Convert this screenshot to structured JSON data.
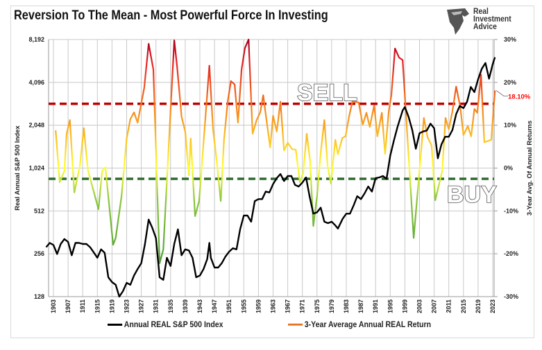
{
  "title": "Reversion To The Mean - Most Powerful Force In Investing",
  "logo": {
    "line1": "Real",
    "line2": "Investment",
    "line3": "Advice",
    "icon": "eagle-head-icon"
  },
  "chart_data": {
    "type": "line",
    "title": "Reversion To The Mean - Most Powerful Force In Investing",
    "xlim": [
      1901.7,
      2023.6
    ],
    "x_tick_labels": [
      "1903",
      "1907",
      "1911",
      "1915",
      "1919",
      "1923",
      "1927",
      "1931",
      "1935",
      "1939",
      "1943",
      "1947",
      "1951",
      "1955",
      "1959",
      "1963",
      "1967",
      "1971",
      "1975",
      "1979",
      "1983",
      "1987",
      "1991",
      "1995",
      "1999",
      "2003",
      "2007",
      "2011",
      "2015",
      "2019",
      "2023"
    ],
    "y_left": {
      "label": "Real Annual S&P 500 Index",
      "scale": "log2",
      "ylim": [
        128,
        8192
      ],
      "tick_labels": [
        "128",
        "256",
        "512",
        "1,024",
        "2,048",
        "4,096",
        "8,192"
      ],
      "ticks": [
        128,
        256,
        512,
        1024,
        2048,
        4096,
        8192
      ]
    },
    "y_right": {
      "label": "3-Year Avg. Of Annual Returns",
      "ylim": [
        -30,
        30
      ],
      "tick_labels": [
        "-30%",
        "-20%",
        "-10%",
        "0%",
        "10%",
        "20%",
        "30%"
      ],
      "ticks": [
        -30,
        -20,
        -10,
        0,
        10,
        20,
        30
      ]
    },
    "grid": true,
    "legend_position": "bottom",
    "series": [
      {
        "name": "Annual REAL S&P 500 Index",
        "axis": "left",
        "color": "#000000",
        "points": [
          [
            1901,
            285
          ],
          [
            1902,
            305
          ],
          [
            1903,
            295
          ],
          [
            1904,
            255
          ],
          [
            1905,
            300
          ],
          [
            1906,
            325
          ],
          [
            1907,
            310
          ],
          [
            1908,
            250
          ],
          [
            1909,
            305
          ],
          [
            1910,
            305
          ],
          [
            1911,
            300
          ],
          [
            1912,
            300
          ],
          [
            1913,
            285
          ],
          [
            1914,
            262
          ],
          [
            1915,
            240
          ],
          [
            1916,
            275
          ],
          [
            1917,
            260
          ],
          [
            1918,
            175
          ],
          [
            1919,
            162
          ],
          [
            1920,
            155
          ],
          [
            1921,
            128
          ],
          [
            1922,
            140
          ],
          [
            1923,
            160
          ],
          [
            1924,
            155
          ],
          [
            1925,
            180
          ],
          [
            1926,
            200
          ],
          [
            1927,
            220
          ],
          [
            1928,
            300
          ],
          [
            1929,
            445
          ],
          [
            1930,
            390
          ],
          [
            1931,
            330
          ],
          [
            1932,
            175
          ],
          [
            1933,
            168
          ],
          [
            1934,
            240
          ],
          [
            1935,
            210
          ],
          [
            1936,
            300
          ],
          [
            1937,
            380
          ],
          [
            1938,
            250
          ],
          [
            1939,
            275
          ],
          [
            1940,
            270
          ],
          [
            1941,
            240
          ],
          [
            1942,
            175
          ],
          [
            1943,
            180
          ],
          [
            1944,
            200
          ],
          [
            1945,
            235
          ],
          [
            1945.6,
            305
          ],
          [
            1946,
            240
          ],
          [
            1947,
            205
          ],
          [
            1948,
            205
          ],
          [
            1949,
            220
          ],
          [
            1950,
            245
          ],
          [
            1951,
            265
          ],
          [
            1952,
            280
          ],
          [
            1953,
            275
          ],
          [
            1954,
            380
          ],
          [
            1955,
            475
          ],
          [
            1956,
            475
          ],
          [
            1957,
            430
          ],
          [
            1958,
            600
          ],
          [
            1959,
            620
          ],
          [
            1960,
            620
          ],
          [
            1961,
            700
          ],
          [
            1962,
            690
          ],
          [
            1963,
            790
          ],
          [
            1964,
            870
          ],
          [
            1965,
            930
          ],
          [
            1966,
            830
          ],
          [
            1967,
            900
          ],
          [
            1968,
            900
          ],
          [
            1969,
            780
          ],
          [
            1970,
            760
          ],
          [
            1971,
            810
          ],
          [
            1972,
            880
          ],
          [
            1973,
            640
          ],
          [
            1974,
            490
          ],
          [
            1975,
            500
          ],
          [
            1976,
            540
          ],
          [
            1977,
            430
          ],
          [
            1978,
            420
          ],
          [
            1979,
            430
          ],
          [
            1980,
            405
          ],
          [
            1980.7,
            385
          ],
          [
            1982,
            450
          ],
          [
            1983,
            490
          ],
          [
            1984,
            490
          ],
          [
            1985,
            560
          ],
          [
            1986,
            650
          ],
          [
            1987,
            620
          ],
          [
            1988,
            680
          ],
          [
            1989,
            760
          ],
          [
            1990,
            700
          ],
          [
            1991,
            870
          ],
          [
            1992,
            880
          ],
          [
            1993,
            900
          ],
          [
            1994,
            860
          ],
          [
            1995,
            1250
          ],
          [
            1996,
            1600
          ],
          [
            1997,
            2000
          ],
          [
            1998.4,
            2600
          ],
          [
            1999,
            2750
          ],
          [
            2000,
            2350
          ],
          [
            2001,
            1900
          ],
          [
            2002,
            1400
          ],
          [
            2003,
            1800
          ],
          [
            2004,
            1850
          ],
          [
            2005,
            1880
          ],
          [
            2006,
            2100
          ],
          [
            2007,
            1950
          ],
          [
            2008,
            1200
          ],
          [
            2009,
            1500
          ],
          [
            2010,
            1700
          ],
          [
            2011,
            1700
          ],
          [
            2012,
            1900
          ],
          [
            2013,
            2450
          ],
          [
            2014,
            2800
          ],
          [
            2015,
            2700
          ],
          [
            2016,
            3000
          ],
          [
            2017,
            3800
          ],
          [
            2018,
            3500
          ],
          [
            2019,
            4300
          ],
          [
            2020,
            5100
          ],
          [
            2021,
            5600
          ],
          [
            2022,
            4350
          ],
          [
            2023,
            5500
          ],
          [
            2023.6,
            6150
          ]
        ]
      },
      {
        "name": "3-Year Average Annual REAL Return",
        "axis": "right",
        "color": "#f58220",
        "color_scale": [
          "#2e8b2e",
          "#8dc63f",
          "#ffff33",
          "#f7941d",
          "#e31e24",
          "#a50021"
        ],
        "points": [
          [
            1903.6,
            8.8
          ],
          [
            1904.7,
            -3.3
          ],
          [
            1906,
            -0.7
          ],
          [
            1906.6,
            8
          ],
          [
            1907.5,
            11.2
          ],
          [
            1908.7,
            -5.7
          ],
          [
            1910.2,
            0.4
          ],
          [
            1911.3,
            9.3
          ],
          [
            1912.4,
            -0.4
          ],
          [
            1915.3,
            -9.6
          ],
          [
            1916.3,
            -0.7
          ],
          [
            1917.2,
            0.2
          ],
          [
            1919.3,
            -17.9
          ],
          [
            1920,
            -16.3
          ],
          [
            1921.6,
            -6.6
          ],
          [
            1923,
            6.9
          ],
          [
            1924,
            11.4
          ],
          [
            1925,
            13
          ],
          [
            1926,
            10.6
          ],
          [
            1927.8,
            18.7
          ],
          [
            1929,
            29
          ],
          [
            1930.3,
            23
          ],
          [
            1932,
            -22.2
          ],
          [
            1933,
            -19
          ],
          [
            1936,
            29.8
          ],
          [
            1936.8,
            23.5
          ],
          [
            1938,
            12
          ],
          [
            1939,
            8.5
          ],
          [
            1940,
            -1.7
          ],
          [
            1940.5,
            6.9
          ],
          [
            1941.7,
            -11.2
          ],
          [
            1942.8,
            -7.7
          ],
          [
            1945.6,
            23.9
          ],
          [
            1946.6,
            9
          ],
          [
            1947.5,
            2.5
          ],
          [
            1948.7,
            -7.7
          ],
          [
            1949.6,
            6.6
          ],
          [
            1950.6,
            15.5
          ],
          [
            1951.5,
            20.3
          ],
          [
            1952.5,
            19.5
          ],
          [
            1953.4,
            10.6
          ],
          [
            1954.4,
            23
          ],
          [
            1955.3,
            28
          ],
          [
            1956.3,
            30
          ],
          [
            1957.4,
            8
          ],
          [
            1958.5,
            11.2
          ],
          [
            1959.5,
            13
          ],
          [
            1960.3,
            17
          ],
          [
            1961.2,
            11.2
          ],
          [
            1962.2,
            4.8
          ],
          [
            1963,
            12.2
          ],
          [
            1964,
            8.5
          ],
          [
            1965,
            15.5
          ],
          [
            1966,
            4.1
          ],
          [
            1967,
            5.9
          ],
          [
            1968.2,
            4.4
          ],
          [
            1969.2,
            4.3
          ],
          [
            1970.3,
            -3.3
          ],
          [
            1971.2,
            -1.2
          ],
          [
            1972.2,
            8
          ],
          [
            1973.1,
            1.7
          ],
          [
            1974,
            -13.5
          ],
          [
            1975,
            -6.6
          ],
          [
            1976,
            3.6
          ],
          [
            1977,
            11.2
          ],
          [
            1977.9,
            0.4
          ],
          [
            1978.8,
            -3.6
          ],
          [
            1980,
            6.6
          ],
          [
            1980.7,
            3.2
          ],
          [
            1981.9,
            7
          ],
          [
            1982.8,
            7.4
          ],
          [
            1983.8,
            12.2
          ],
          [
            1984.7,
            15.6
          ],
          [
            1986.4,
            15.3
          ],
          [
            1987.5,
            10.1
          ],
          [
            1988.5,
            12.9
          ],
          [
            1989.4,
            9.6
          ],
          [
            1990.6,
            14.6
          ],
          [
            1991.5,
            7.4
          ],
          [
            1992.7,
            12.9
          ],
          [
            1993.6,
            3.3
          ],
          [
            1994.6,
            13.3
          ],
          [
            1995.3,
            16.9
          ],
          [
            1996.3,
            27.9
          ],
          [
            1997.4,
            25.8
          ],
          [
            1998.4,
            25.2
          ],
          [
            2001.4,
            -16.3
          ],
          [
            2003.1,
            0.4
          ],
          [
            2004.2,
            11.7
          ],
          [
            2005.2,
            7.2
          ],
          [
            2006.3,
            5.3
          ],
          [
            2007.3,
            -7.5
          ],
          [
            2009.2,
            -0.7
          ],
          [
            2010.1,
            11.7
          ],
          [
            2011,
            9
          ],
          [
            2012,
            13.3
          ],
          [
            2013,
            19
          ],
          [
            2014.1,
            14.4
          ],
          [
            2015,
            7.7
          ],
          [
            2016.2,
            9.8
          ],
          [
            2017.1,
            7.4
          ],
          [
            2018,
            13.8
          ],
          [
            2018.8,
            12.9
          ],
          [
            2019.8,
            21.8
          ],
          [
            2020.7,
            6
          ],
          [
            2022.6,
            6.6
          ],
          [
            2023.6,
            18.1
          ]
        ]
      }
    ],
    "thresholds": [
      {
        "label": "SELL",
        "value": 15,
        "axis": "right",
        "color": "#c00000"
      },
      {
        "label": "BUY",
        "value": -2.5,
        "axis": "right",
        "color": "#2e6b2e"
      }
    ],
    "annotations": [
      {
        "text": "18.10%",
        "color": "#ff0000",
        "value": 18.1
      }
    ]
  },
  "legend": [
    "Annual REAL S&P 500 Index",
    "3-Year Average Annual REAL Return"
  ]
}
